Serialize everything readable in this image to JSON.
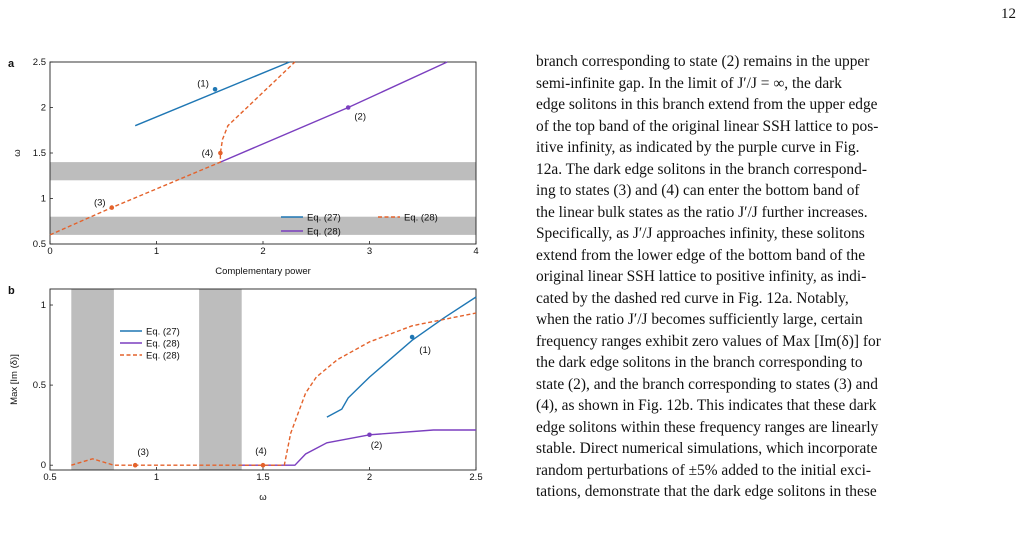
{
  "page": {
    "number": "12"
  },
  "colors": {
    "eq27": "#1f77b4",
    "eq28_solid": "#7b3fbf",
    "eq28_dash": "#e4622b",
    "band": "#bdbdbd"
  },
  "chart_data": [
    {
      "type": "line",
      "panel_label": "a",
      "title": "",
      "xlabel": "Complementary power",
      "ylabel": "ω",
      "xlim": [
        0,
        4
      ],
      "ylim": [
        0.5,
        2.5
      ],
      "xticks": [
        "0",
        "1",
        "2",
        "3",
        "4"
      ],
      "yticks": [
        "0.5",
        "1",
        "1.5",
        "2",
        "2.5"
      ],
      "shaded_bands_y": [
        [
          0.6,
          0.8
        ],
        [
          1.2,
          1.4
        ]
      ],
      "series": [
        {
          "name": "Eq. (27)",
          "style": "solid",
          "x": [
            0.8,
            2.25
          ],
          "y": [
            1.8,
            2.5
          ]
        },
        {
          "name": "Eq. (28)",
          "style": "solid",
          "x": [
            1.6,
            2.8,
            3.73
          ],
          "y": [
            1.4,
            2.0,
            2.5
          ]
        },
        {
          "name": "Eq. (28)",
          "style": "dashed",
          "x": [
            0,
            0.58,
            1.6,
            1.6,
            1.62,
            1.67,
            2.3
          ],
          "y": [
            0.6,
            0.9,
            1.4,
            1.5,
            1.65,
            1.8,
            2.5
          ]
        }
      ],
      "annotations": [
        {
          "label": "(1)",
          "x": 1.55,
          "y": 2.2
        },
        {
          "label": "(2)",
          "x": 2.8,
          "y": 2.0
        },
        {
          "label": "(3)",
          "x": 0.58,
          "y": 0.9
        },
        {
          "label": "(4)",
          "x": 1.6,
          "y": 1.5
        }
      ],
      "legend_position": "center-right"
    },
    {
      "type": "line",
      "panel_label": "b",
      "title": "",
      "xlabel": "ω",
      "ylabel": "Max [Im (δ)]",
      "xlim": [
        0.5,
        2.5
      ],
      "ylim": [
        -0.03,
        1.1
      ],
      "xticks": [
        "0.5",
        "1",
        "1.5",
        "2",
        "2.5"
      ],
      "yticks": [
        "0",
        "0.5",
        "1"
      ],
      "shaded_bands_x": [
        [
          0.6,
          0.8
        ],
        [
          1.2,
          1.4
        ]
      ],
      "series": [
        {
          "name": "Eq. (27)",
          "style": "solid",
          "x": [
            1.8,
            1.87,
            1.9,
            2.0,
            2.2,
            2.35,
            2.5
          ],
          "y": [
            0.3,
            0.35,
            0.42,
            0.55,
            0.78,
            0.92,
            1.05
          ]
        },
        {
          "name": "Eq. (28)",
          "style": "solid",
          "x": [
            1.4,
            1.65,
            1.7,
            1.8,
            2.0,
            2.3,
            2.5
          ],
          "y": [
            0.0,
            0.0,
            0.07,
            0.14,
            0.19,
            0.22,
            0.22
          ]
        },
        {
          "name": "Eq. (28)",
          "style": "dashed",
          "x": [
            0.6,
            0.7,
            0.8,
            0.9,
            1.0,
            1.6,
            1.63,
            1.7,
            1.75,
            1.85,
            2.0,
            2.2,
            2.5
          ],
          "y": [
            0.0,
            0.04,
            0.0,
            0.0,
            0.0,
            0.0,
            0.2,
            0.45,
            0.55,
            0.66,
            0.77,
            0.87,
            0.95
          ]
        }
      ],
      "annotations": [
        {
          "label": "(1)",
          "x": 2.2,
          "y": 0.8
        },
        {
          "label": "(2)",
          "x": 2.0,
          "y": 0.19
        },
        {
          "label": "(3)",
          "x": 0.9,
          "y": 0.0
        },
        {
          "label": "(4)",
          "x": 1.5,
          "y": 0.0
        }
      ],
      "legend_position": "upper-left"
    }
  ],
  "body_lines": [
    "branch corresponding to state (2) remains in the upper",
    "semi-infinite gap.  In the limit of J′/J = ∞, the dark",
    "edge solitons in this branch extend from the upper edge",
    "of the top band of the original linear SSH lattice to pos-",
    "itive infinity, as indicated by the purple curve in Fig.",
    "12a.  The dark edge solitons in the branch correspond-",
    "ing to states (3) and (4) can enter the bottom band of",
    "the linear bulk states as the ratio J′/J further increases.",
    "Specifically, as J′/J approaches infinity, these solitons",
    "extend from the lower edge of the bottom band of the",
    "original linear SSH lattice to positive infinity, as indi-",
    "cated by the dashed red curve in Fig.  12a.  Notably,",
    "when the ratio J′/J becomes sufficiently large, certain",
    "frequency ranges exhibit zero values of Max [Im(δ)] for",
    "the dark edge solitons in the branch corresponding to",
    "state (2), and the branch corresponding to states (3) and",
    "(4), as shown in Fig. 12b. This indicates that these dark",
    "edge solitons within these frequency ranges are linearly",
    "stable.  Direct numerical simulations, which incorporate",
    "random perturbations of ±5% added to the initial exci-",
    "tations, demonstrate that the dark edge solitons in these"
  ]
}
